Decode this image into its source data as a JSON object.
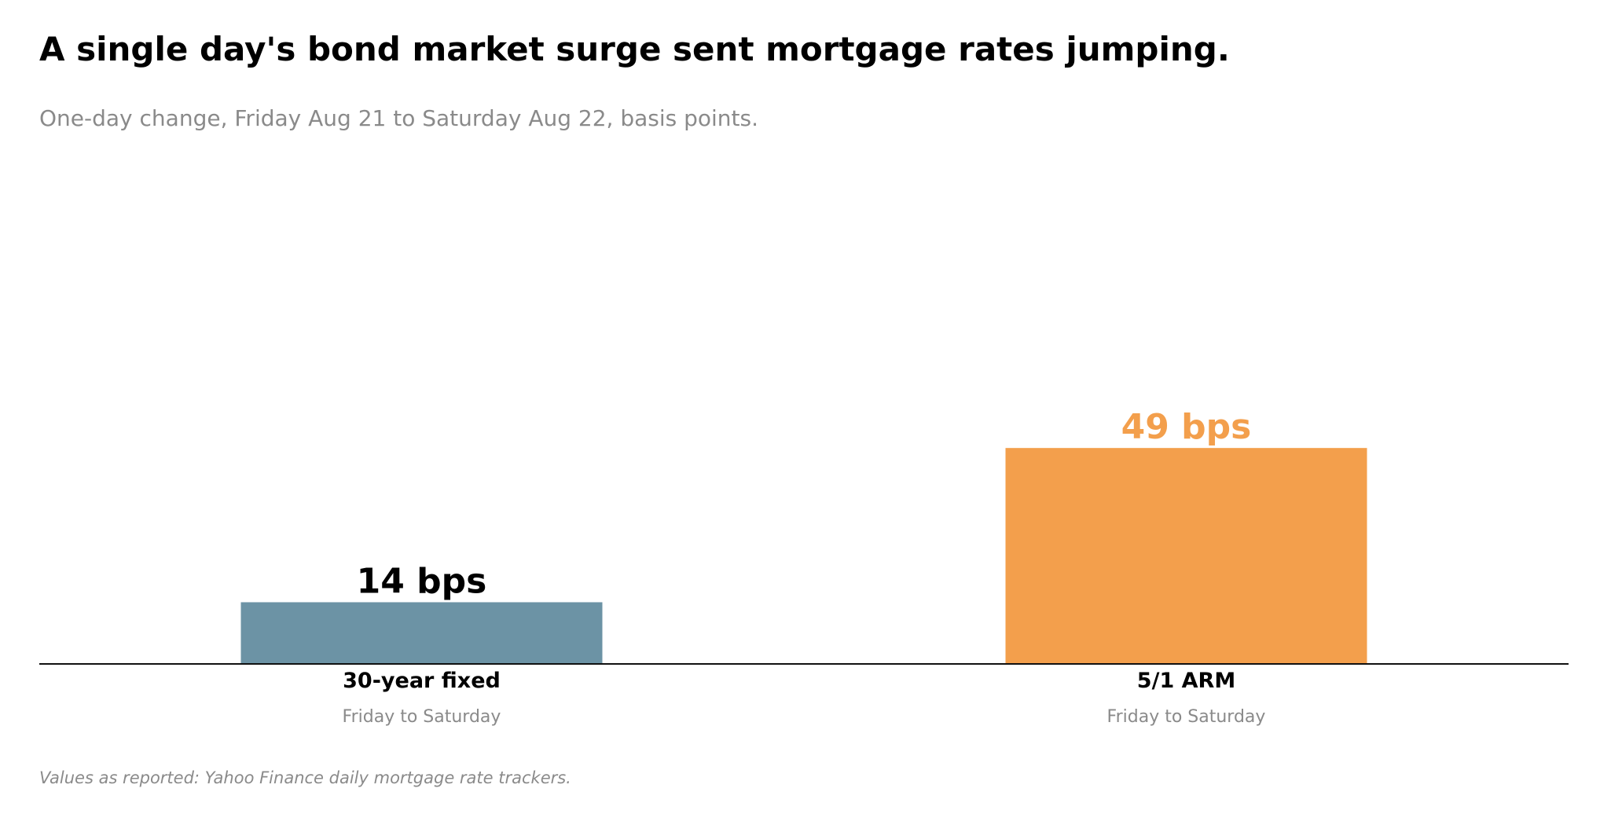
{
  "title": "A single day's bond market surge sent mortgage rates jumping.",
  "subtitle": "One-day change, Friday Aug 21 to Saturday Aug 22, basis points.",
  "footnote": "Values as reported: Yahoo Finance daily mortgage rate trackers.",
  "chart_data": {
    "type": "bar",
    "categories": [
      "30-year fixed",
      "5/1 ARM"
    ],
    "category_sublabels": [
      "Friday to Saturday",
      "Friday to Saturday"
    ],
    "values": [
      14,
      49
    ],
    "value_labels": [
      "14 bps",
      "49 bps"
    ],
    "bar_colors": [
      "#6c93a5",
      "#f39f4c"
    ],
    "value_label_colors": [
      "#000000",
      "#f39f4c"
    ],
    "ylim": [
      0,
      115
    ],
    "grid": false
  }
}
